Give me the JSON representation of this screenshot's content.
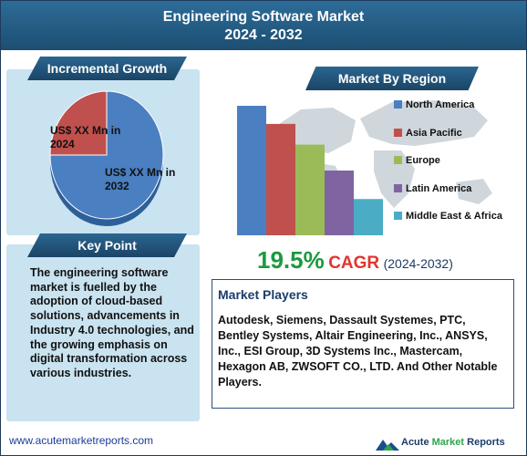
{
  "header": {
    "title_line1": "Engineering Software Market",
    "title_line2": "2024 - 2032"
  },
  "incremental_growth": {
    "label": "Incremental Growth",
    "pie_labels": {
      "year2024": "US$ XX Mn in 2024",
      "year2032": "US$ XX Mn in 2032"
    }
  },
  "key_point": {
    "label": "Key Point",
    "text": "The engineering software market is fuelled by the adoption of cloud-based solutions, advancements in Industry 4.0 technologies, and the growing emphasis on digital transformation across various industries."
  },
  "market_by_region": {
    "label": "Market By Region"
  },
  "cagr": {
    "value": "19.5%",
    "word": "CAGR",
    "period": "(2024-2032)"
  },
  "market_players": {
    "title": "Market Players",
    "text": "Autodesk, Siemens, Dassault Systemes, PTC, Bentley Systems, Altair Engineering, Inc., ANSYS, Inc., ESI Group, 3D Systems Inc., Mastercam, Hexagon AB, ZWSOFT CO., LTD. And Other Notable Players."
  },
  "footer": {
    "url": "www.acutemarketreports.com",
    "brand_a": "Acute ",
    "brand_b": "Market",
    "brand_c": " Reports"
  },
  "colors": {
    "north_america": "#4a7fc1",
    "asia_pacific": "#c0504d",
    "europe": "#9bbb59",
    "latin_america": "#8064a2",
    "mea": "#4bacc6",
    "pie_2032": "#4a7fc1",
    "pie_2024": "#c0504d"
  },
  "chart_data": [
    {
      "type": "pie",
      "title": "Incremental Growth",
      "categories": [
        "US$ XX Mn in 2024",
        "US$ XX Mn in 2032"
      ],
      "values": [
        25,
        75
      ]
    },
    {
      "type": "bar",
      "title": "Market By Region",
      "categories": [
        "North America",
        "Asia Pacific",
        "Europe",
        "Latin America",
        "Middle East & Africa"
      ],
      "values": [
        100,
        86,
        70,
        50,
        28
      ],
      "ylim": [
        0,
        100
      ],
      "legend_position": "right",
      "grid": false
    }
  ]
}
